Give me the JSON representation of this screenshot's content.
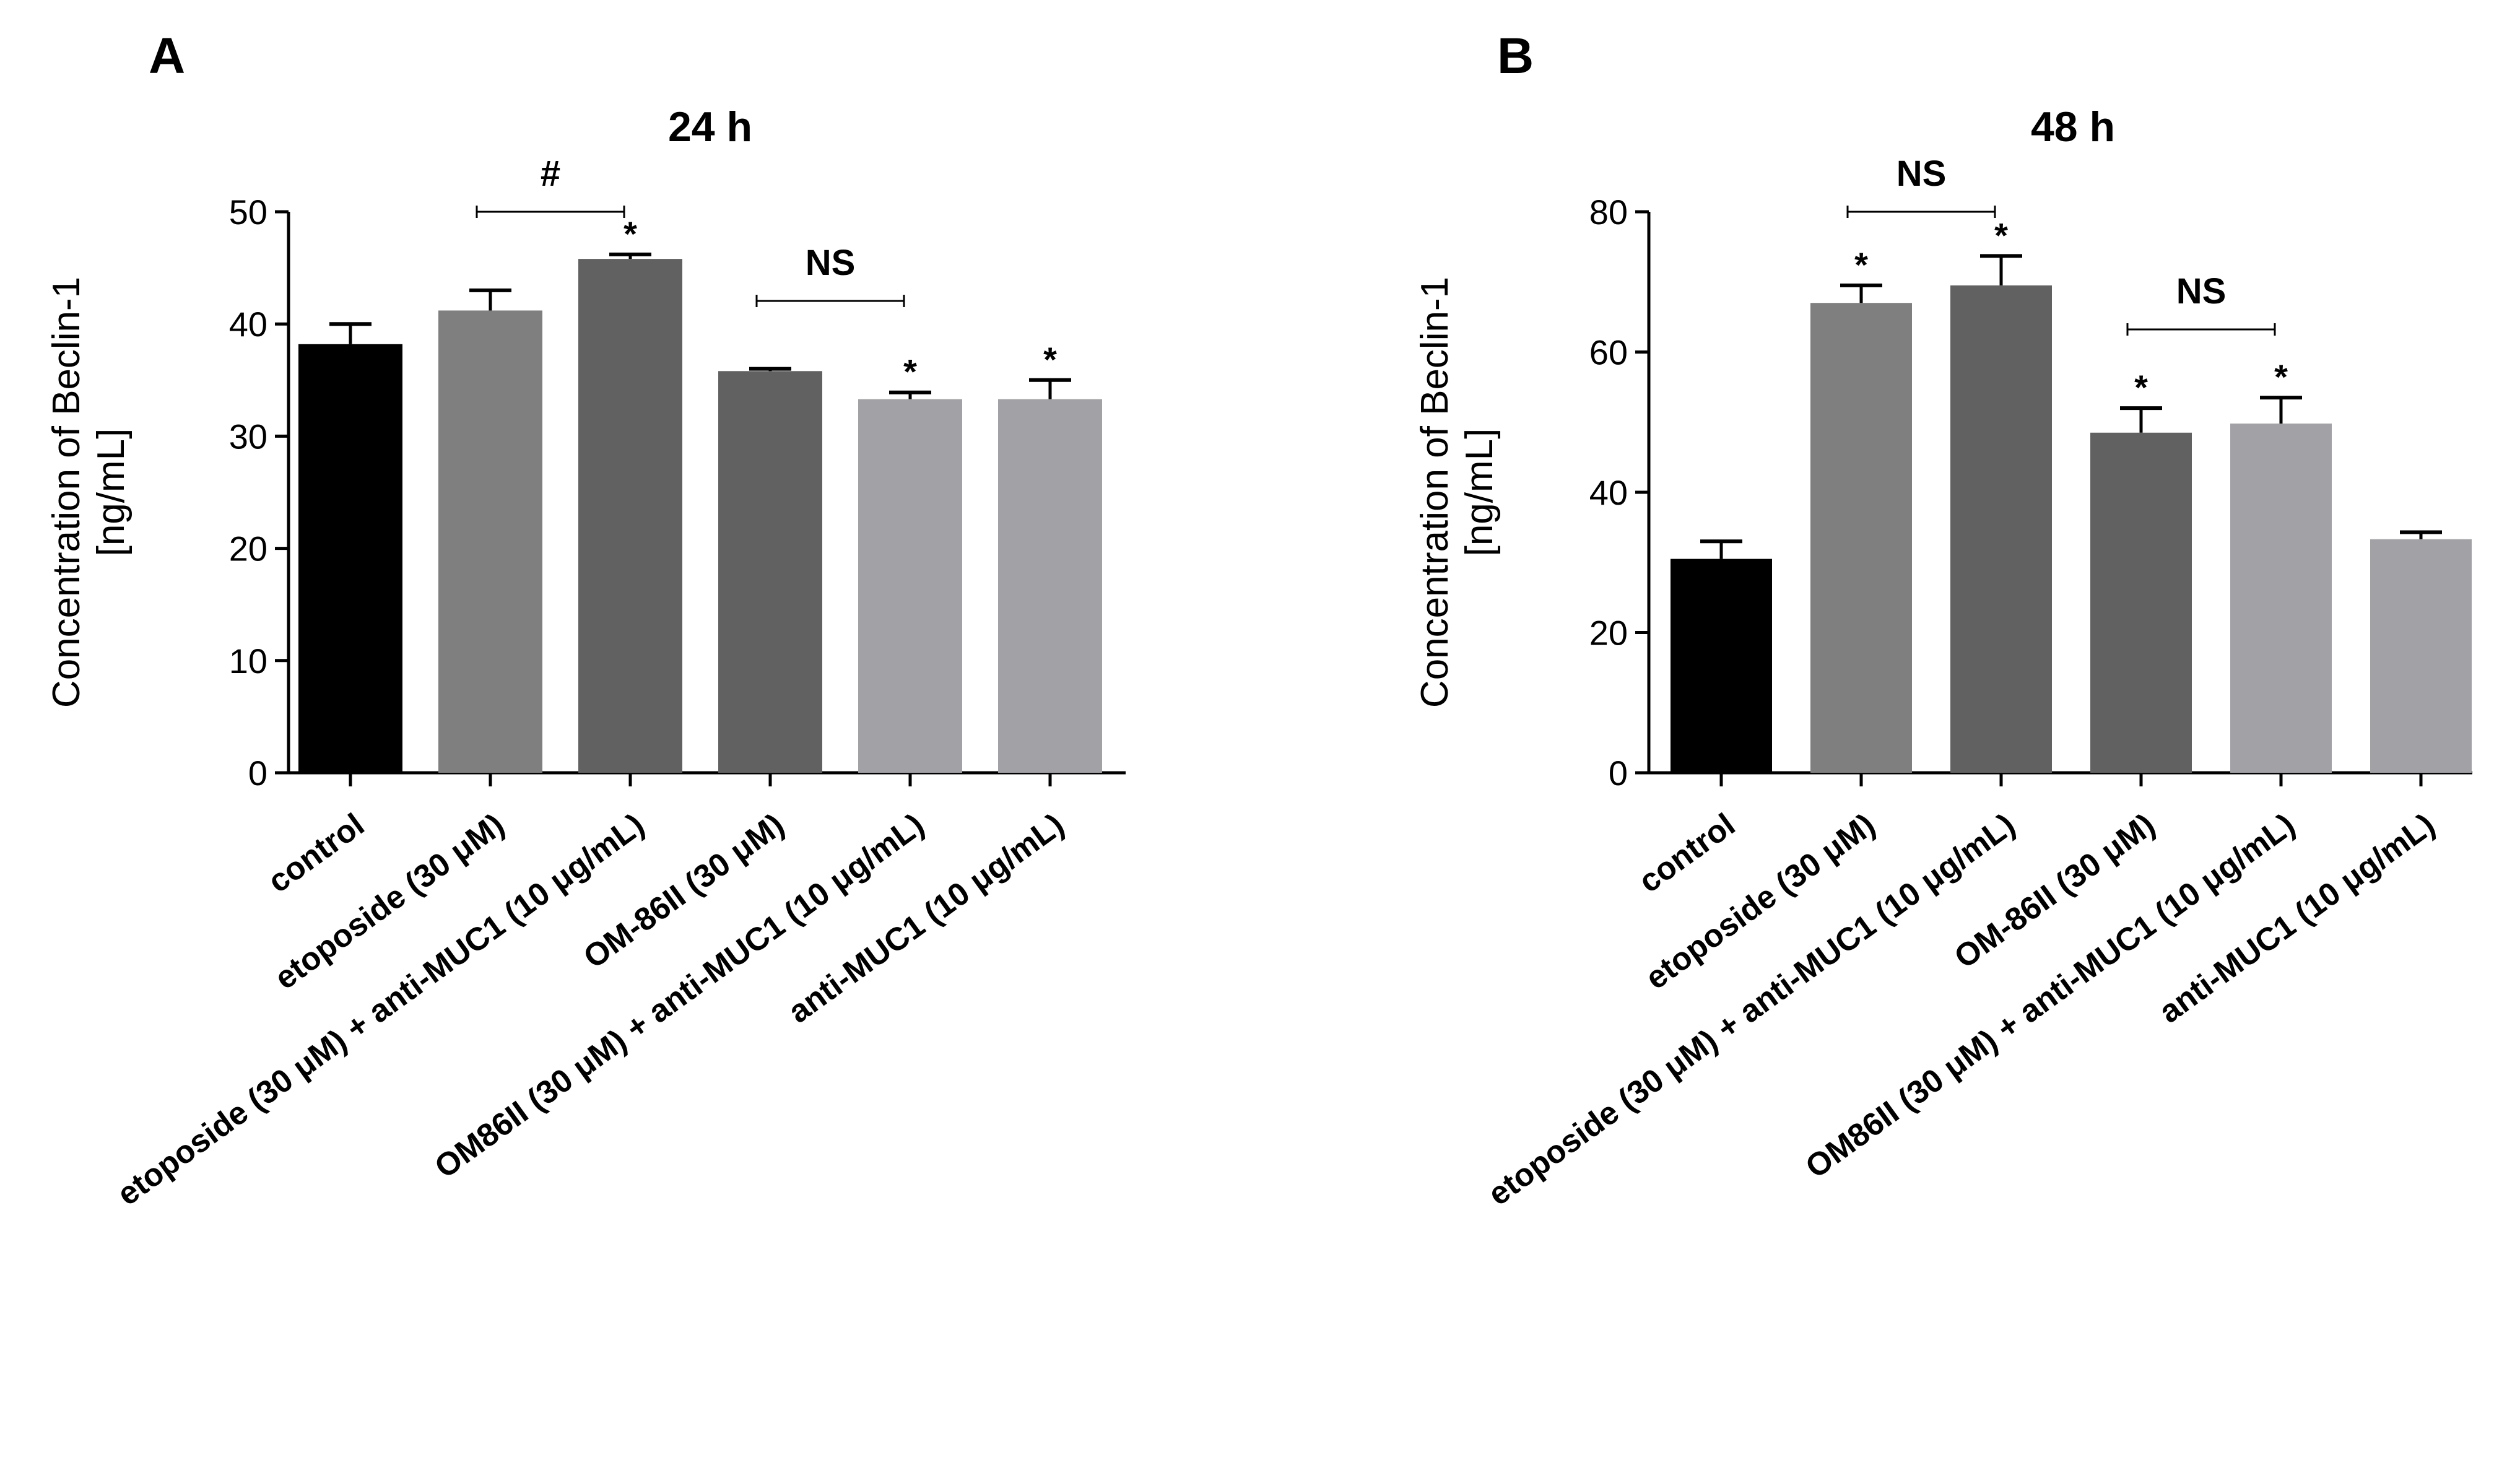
{
  "figure": {
    "panels": [
      {
        "letter": "A"
      },
      {
        "letter": "B"
      }
    ]
  },
  "chart_data": [
    {
      "type": "bar",
      "title": "24 h",
      "ylabel": "Concentration of Beclin-1\n[ng/mL]",
      "xlabel": "",
      "ylim": [
        0,
        50
      ],
      "yticks": [
        0,
        10,
        20,
        30,
        40,
        50
      ],
      "categories": [
        "control",
        "etoposide (30  μM)",
        "etoposide (30  μM) + anti-MUC1 (10  μg/mL)",
        "OM-86II (30  μM)",
        "OM86II (30  μM) + anti-MUC1 (10  μg/mL)",
        "anti-MUC1 (10  μg/mL)"
      ],
      "values": [
        38.2,
        41.2,
        45.8,
        35.8,
        33.3,
        33.3
      ],
      "errors": [
        1.8,
        1.8,
        0.4,
        0.2,
        0.6,
        1.7
      ],
      "colors": [
        "#000000",
        "#7f7f7f",
        "#616161",
        "#616161",
        "#a2a2a6",
        "#a2a2a6"
      ],
      "significance": [
        "",
        "",
        "*",
        "",
        "*",
        "*"
      ],
      "brackets": [
        {
          "from": 1,
          "to": 2,
          "label": "#"
        },
        {
          "from": 3,
          "to": 4,
          "label": "NS"
        }
      ]
    },
    {
      "type": "bar",
      "title": "48 h",
      "ylabel": "Concentration of Beclin-1\n[ng/mL]",
      "xlabel": "",
      "ylim": [
        0,
        80
      ],
      "yticks": [
        0,
        20,
        40,
        60,
        80
      ],
      "categories": [
        "control",
        "etoposide (30  μM)",
        "etoposide (30  μM) + anti-MUC1 (10  μg/mL)",
        "OM-86II (30  μM)",
        "OM86II (30  μM) + anti-MUC1 (10  μg/mL)",
        "anti-MUC1 (10  μg/mL)"
      ],
      "values": [
        30.5,
        67.0,
        69.5,
        48.5,
        49.8,
        33.3
      ],
      "errors": [
        2.5,
        2.5,
        4.2,
        3.5,
        3.7,
        1.0
      ],
      "colors": [
        "#000000",
        "#7f7f7f",
        "#616161",
        "#616161",
        "#a2a2a6",
        "#a2a2a6"
      ],
      "significance": [
        "",
        "*",
        "*",
        "*",
        "*",
        ""
      ],
      "brackets": [
        {
          "from": 1,
          "to": 2,
          "label": "NS"
        },
        {
          "from": 3,
          "to": 4,
          "label": "NS"
        }
      ]
    }
  ]
}
